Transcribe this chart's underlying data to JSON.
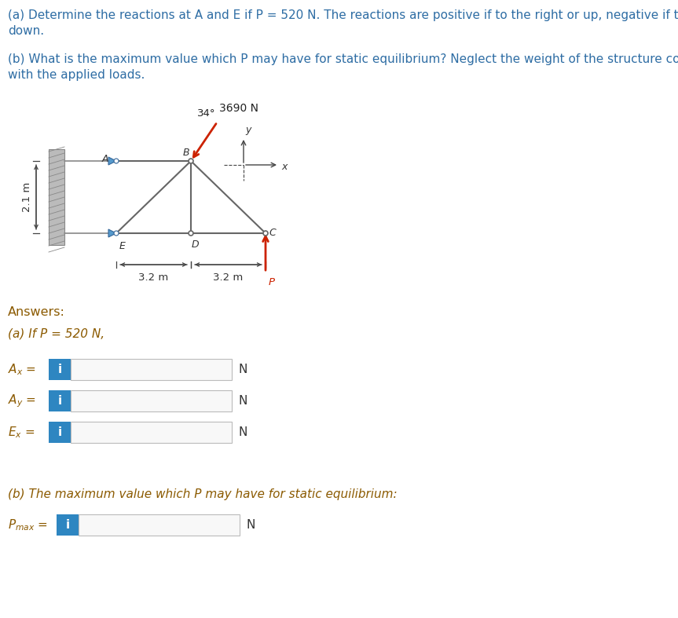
{
  "title_a_line1": "(a) Determine the reactions at A and E if P = 520 N. The reactions are positive if to the right or up, negative if to the left or",
  "title_a_line2": "down.",
  "title_b_line1": "(b) What is the maximum value which P may have for static equilibrium? Neglect the weight of the structure compared",
  "title_b_line2": "with the applied loads.",
  "answers_header": "Answers:",
  "answer_a_header": "(a) If P = 520 N,",
  "answer_b_header": "(b) The maximum value which P may have for static equilibrium:",
  "force_label": "3690 N",
  "angle_label": "34°",
  "dim_21": "2.1 m",
  "dim_32a": "3.2 m",
  "dim_32b": "3.2 m",
  "P_label": "P",
  "node_A": "A",
  "node_B": "B",
  "node_C": "C",
  "node_D": "D",
  "node_E": "E",
  "axis_x": "x",
  "axis_y": "y",
  "text_blue": "#2e6da4",
  "text_brown": "#8b5a00",
  "bg_color": "#ffffff",
  "box_border": "#bbbbbb",
  "box_fill": "#f8f8f8",
  "btn_blue": "#2e86c1",
  "struct_color": "#666666",
  "red_arrow": "#cc2200",
  "blue_pin": "#5599cc",
  "wall_gray": "#bbbbbb",
  "dim_color": "#444444",
  "coord_color": "#444444"
}
